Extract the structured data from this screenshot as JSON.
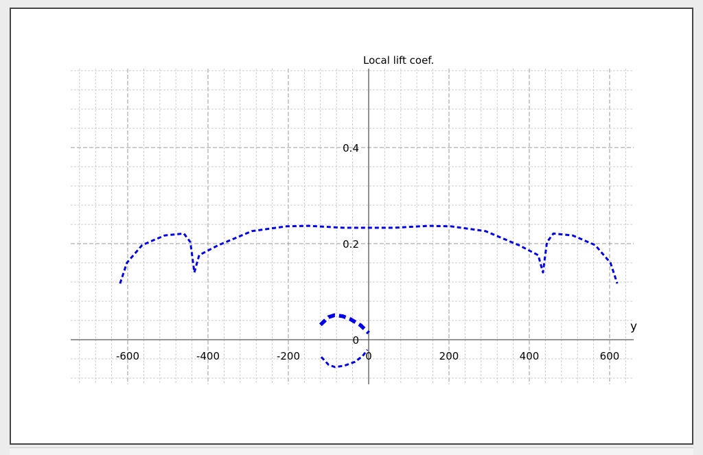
{
  "chart_data": {
    "type": "line",
    "title": "",
    "xlabel": "y",
    "ylabel": "Local lift coef.",
    "xlim": [
      -740,
      660
    ],
    "ylim": [
      -0.09,
      0.56
    ],
    "x_major_ticks": [
      -600,
      -400,
      -200,
      0,
      200,
      400,
      600
    ],
    "x_tick_labels": [
      "-600",
      "-400",
      "-200",
      "0",
      "200",
      "400",
      "600"
    ],
    "x_minor_step": 40,
    "y_major_ticks": [
      0,
      0.2,
      0.4
    ],
    "y_tick_labels": [
      "0",
      "0.2",
      "0.4"
    ],
    "y_minor_step": 0.04,
    "grid": true,
    "color": "#0000e6",
    "series": [
      {
        "style": "dashed-thin",
        "x": [
          -619,
          -602,
          -564,
          -508,
          -460,
          -444,
          -434,
          -422,
          -376,
          -291,
          -205,
          -149,
          -63,
          0,
          63,
          149,
          205,
          291,
          376,
          422,
          434,
          444,
          460,
          508,
          564,
          602,
          619
        ],
        "y": [
          0.117,
          0.16,
          0.197,
          0.217,
          0.221,
          0.203,
          0.14,
          0.176,
          0.196,
          0.226,
          0.236,
          0.237,
          0.233,
          0.233,
          0.233,
          0.237,
          0.236,
          0.226,
          0.196,
          0.176,
          0.14,
          0.203,
          0.221,
          0.217,
          0.197,
          0.16,
          0.117
        ]
      },
      {
        "style": "dashed-thick",
        "x": [
          -120,
          -100,
          -85,
          -65,
          -46,
          -20,
          0
        ],
        "y": [
          0.031,
          0.047,
          0.051,
          0.049,
          0.043,
          0.03,
          0.014
        ]
      },
      {
        "style": "dashed-thin",
        "x": [
          -118,
          -100,
          -84,
          -60,
          -34,
          -15,
          -3
        ],
        "y": [
          -0.036,
          -0.052,
          -0.057,
          -0.054,
          -0.046,
          -0.034,
          -0.021
        ]
      }
    ]
  }
}
